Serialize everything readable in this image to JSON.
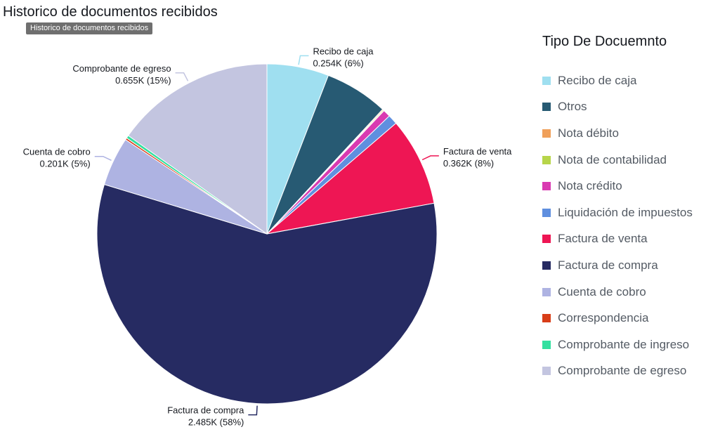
{
  "header": {
    "title": "Historico de documentos recibidos",
    "tooltip": "Historico de documentos recibidos"
  },
  "legend": {
    "title": "Tipo De Docuemnto"
  },
  "chart_data": {
    "type": "pie",
    "title": "Historico de documentos recibidos",
    "legend_title": "Tipo De Docuemnto",
    "legend_position": "right",
    "slices": [
      {
        "label": "Recibo de caja",
        "value": 0.254,
        "value_label": "0.254K (6%)",
        "color": "#9fdff0",
        "show_label": true
      },
      {
        "label": "Otros",
        "value": 0.26,
        "value_label": "",
        "color": "#275a73",
        "show_label": false
      },
      {
        "label": "Nota débito",
        "value": 0.004,
        "value_label": "",
        "color": "#f0a05a",
        "show_label": false
      },
      {
        "label": "Nota de contabilidad",
        "value": 0.004,
        "value_label": "",
        "color": "#b7d54a",
        "show_label": false
      },
      {
        "label": "Nota crédito",
        "value": 0.03,
        "value_label": "",
        "color": "#d93ab1",
        "show_label": false
      },
      {
        "label": "Liquidación de impuestos",
        "value": 0.04,
        "value_label": "",
        "color": "#5f8fdf",
        "show_label": false
      },
      {
        "label": "Factura de venta",
        "value": 0.362,
        "value_label": "0.362K (8%)",
        "color": "#ee1654",
        "show_label": true
      },
      {
        "label": "Factura de compra",
        "value": 2.485,
        "value_label": "2.485K (58%)",
        "color": "#262b62",
        "show_label": true
      },
      {
        "label": "Cuenta de cobro",
        "value": 0.201,
        "value_label": "0.201K (5%)",
        "color": "#aeb3e2",
        "show_label": true
      },
      {
        "label": "Correspondencia",
        "value": 0.008,
        "value_label": "",
        "color": "#d83e18",
        "show_label": false
      },
      {
        "label": "Comprobante de ingreso",
        "value": 0.012,
        "value_label": "",
        "color": "#33e0a0",
        "show_label": false
      },
      {
        "label": "Comprobante de egreso",
        "value": 0.655,
        "value_label": "0.655K (15%)",
        "color": "#c3c5e0",
        "show_label": true
      }
    ]
  }
}
